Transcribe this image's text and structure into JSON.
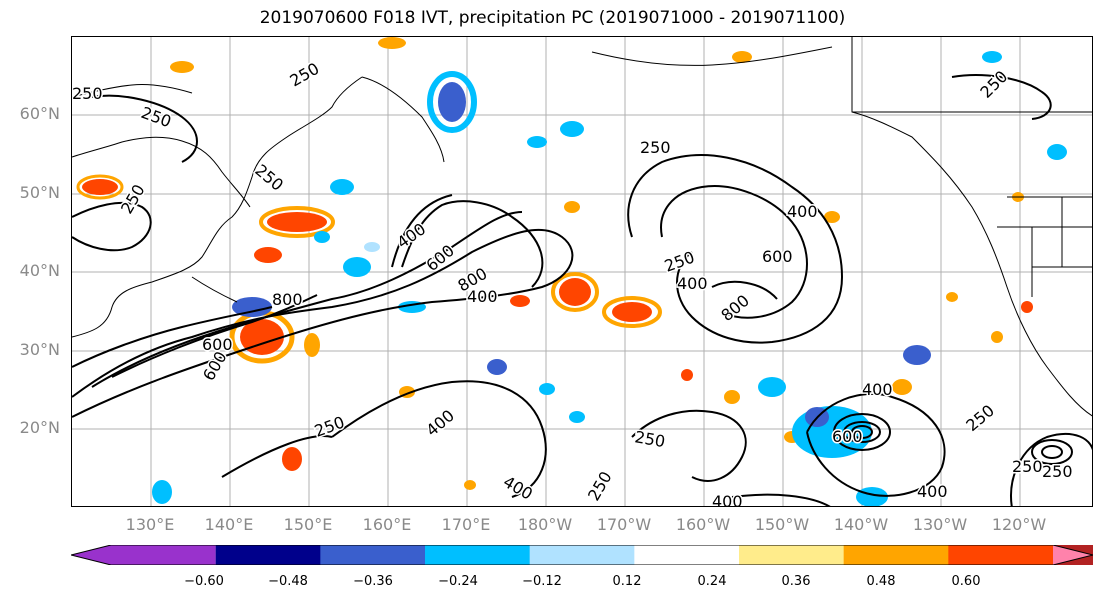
{
  "title": "2019070600 F018 IVT, precipitation PC (2019071000 - 2019071100)",
  "lat_labels": [
    "60°N",
    "50°N",
    "40°N",
    "30°N",
    "20°N"
  ],
  "lon_labels": [
    "130°E",
    "140°E",
    "150°E",
    "160°E",
    "170°E",
    "180°W",
    "170°W",
    "160°W",
    "150°W",
    "140°W",
    "130°W",
    "120°W"
  ],
  "contour_labels": [
    "250",
    "250",
    "250",
    "250",
    "250",
    "250",
    "250",
    "250",
    "250",
    "250",
    "250",
    "250",
    "400",
    "400",
    "400",
    "400",
    "400",
    "400",
    "400",
    "600",
    "600",
    "600",
    "600",
    "600",
    "800",
    "800",
    "800",
    "600",
    "250",
    "400",
    "400",
    "250"
  ],
  "colorbar": {
    "ticks": [
      "−0.60",
      "−0.48",
      "−0.36",
      "−0.24",
      "−0.12",
      "0.12",
      "0.24",
      "0.36",
      "0.48",
      "0.60"
    ],
    "colors": [
      "#9932cc",
      "#00008b",
      "#3a5fcd",
      "#00bfff",
      "#b0e2ff",
      "#ffffff",
      "#ffec8b",
      "#ffa500",
      "#ff4500",
      "#b22222",
      "#ff82ab"
    ]
  },
  "style": {
    "grid_color": "#b0b0b0",
    "contour_color": "#000000",
    "coast_color": "#000000"
  }
}
